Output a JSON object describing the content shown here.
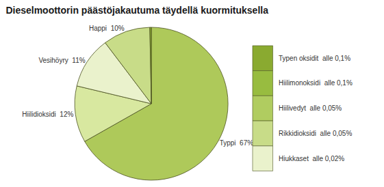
{
  "chart_data": {
    "type": "pie",
    "title": "Dieselmoottorin päästöjakautuma täydellä kuormituksella",
    "categories": [
      "Typpi  67%",
      "Hiilidioksidi  12%",
      "Vesihöyry  11%",
      "Happi  10%",
      null
    ],
    "values": [
      67,
      12,
      11,
      10,
      0.32
    ],
    "colors": [
      "#aec95a",
      "#d8e8a0",
      "#eaf2cc",
      "#c8dc88",
      "#8aaa30"
    ],
    "annotations": [
      {
        "text": "Typen oksidit  alle 0,1%",
        "color": "#8aaa30"
      },
      {
        "text": "Hiilimonoksidi  alle 0,1%",
        "color": "#98bc40"
      },
      {
        "text": "Hiilivedyt  alle 0,05%",
        "color": "#b0cc60"
      },
      {
        "text": "Rikkidioksidi  alle 0,05%",
        "color": "#c8dc88"
      },
      {
        "text": "Hiukkaset  alle 0,02%",
        "color": "#eaf2cc"
      }
    ]
  }
}
